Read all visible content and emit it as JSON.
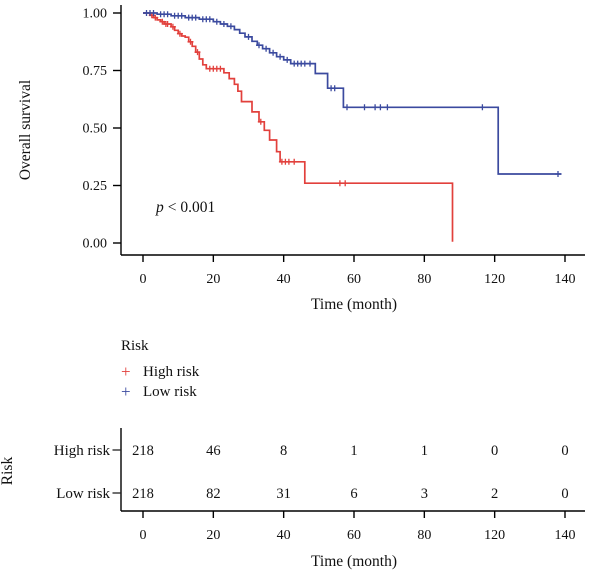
{
  "figure": {
    "background": "#ffffff",
    "p_annotation": {
      "italic_part": "p",
      "rest_part": "< 0.001"
    }
  },
  "chart_data": {
    "type": "line",
    "subtype": "kaplan-meier-step",
    "title": "",
    "xlabel": "Time (month)",
    "ylabel": "Overall survival",
    "ylim": [
      0,
      1
    ],
    "x_tick_labels": [
      "0",
      "20",
      "40",
      "60",
      "80",
      "120",
      "140"
    ],
    "y_tick_labels": [
      "0.00",
      "0.25",
      "0.50",
      "0.75",
      "1.00"
    ],
    "grid": false,
    "legend_position": "below",
    "annotation": "p < 0.001",
    "series": [
      {
        "name": "High risk",
        "color": "#e2403c",
        "steps": [
          [
            0,
            1.0
          ],
          [
            2,
            0.99
          ],
          [
            3,
            0.98
          ],
          [
            4,
            0.97
          ],
          [
            5,
            0.962
          ],
          [
            6,
            0.952
          ],
          [
            8,
            0.94
          ],
          [
            9,
            0.925
          ],
          [
            10,
            0.91
          ],
          [
            11,
            0.9
          ],
          [
            12,
            0.895
          ],
          [
            13,
            0.875
          ],
          [
            14,
            0.855
          ],
          [
            15,
            0.83
          ],
          [
            16,
            0.8
          ],
          [
            17,
            0.775
          ],
          [
            18,
            0.758
          ],
          [
            23,
            0.74
          ],
          [
            24.5,
            0.715
          ],
          [
            26,
            0.69
          ],
          [
            27,
            0.66
          ],
          [
            28,
            0.615
          ],
          [
            31,
            0.57
          ],
          [
            33,
            0.527
          ],
          [
            34.5,
            0.49
          ],
          [
            36,
            0.448
          ],
          [
            38,
            0.397
          ],
          [
            39,
            0.353
          ],
          [
            46,
            0.26
          ],
          [
            96,
            0.005
          ]
        ],
        "censors": [
          [
            2.5,
            0.99
          ],
          [
            3.5,
            0.98
          ],
          [
            5.5,
            0.962
          ],
          [
            6.5,
            0.952
          ],
          [
            7,
            0.952
          ],
          [
            8.5,
            0.94
          ],
          [
            10.5,
            0.91
          ],
          [
            13.5,
            0.875
          ],
          [
            15.5,
            0.83
          ],
          [
            19,
            0.758
          ],
          [
            20,
            0.758
          ],
          [
            21,
            0.758
          ],
          [
            22,
            0.758
          ],
          [
            33.5,
            0.527
          ],
          [
            39.5,
            0.353
          ],
          [
            40.5,
            0.353
          ],
          [
            41.5,
            0.353
          ],
          [
            43,
            0.353
          ],
          [
            56,
            0.26
          ],
          [
            57.5,
            0.26
          ]
        ]
      },
      {
        "name": "Low risk",
        "color": "#3b4a9f",
        "steps": [
          [
            0,
            1.0
          ],
          [
            4,
            0.995
          ],
          [
            8,
            0.988
          ],
          [
            12,
            0.98
          ],
          [
            16,
            0.973
          ],
          [
            20,
            0.962
          ],
          [
            22,
            0.952
          ],
          [
            24,
            0.942
          ],
          [
            26,
            0.928
          ],
          [
            27.5,
            0.912
          ],
          [
            29,
            0.896
          ],
          [
            31,
            0.877
          ],
          [
            32.5,
            0.86
          ],
          [
            34,
            0.845
          ],
          [
            36,
            0.827
          ],
          [
            38,
            0.81
          ],
          [
            40,
            0.796
          ],
          [
            42,
            0.78
          ],
          [
            49,
            0.737
          ],
          [
            52.5,
            0.673
          ],
          [
            57,
            0.59
          ],
          [
            121,
            0.3
          ],
          [
            139,
            0.3
          ]
        ],
        "censors": [
          [
            1,
            1.0
          ],
          [
            2,
            1.0
          ],
          [
            3,
            1.0
          ],
          [
            5,
            0.995
          ],
          [
            6,
            0.995
          ],
          [
            7,
            0.995
          ],
          [
            9,
            0.988
          ],
          [
            10,
            0.988
          ],
          [
            11,
            0.988
          ],
          [
            13,
            0.98
          ],
          [
            14,
            0.98
          ],
          [
            15,
            0.98
          ],
          [
            17,
            0.973
          ],
          [
            18,
            0.973
          ],
          [
            19,
            0.973
          ],
          [
            21,
            0.962
          ],
          [
            23,
            0.952
          ],
          [
            25,
            0.942
          ],
          [
            30,
            0.896
          ],
          [
            33,
            0.86
          ],
          [
            35,
            0.845
          ],
          [
            37,
            0.827
          ],
          [
            39,
            0.81
          ],
          [
            41,
            0.796
          ],
          [
            43,
            0.78
          ],
          [
            44,
            0.78
          ],
          [
            45,
            0.78
          ],
          [
            46,
            0.78
          ],
          [
            47.5,
            0.78
          ],
          [
            53.5,
            0.673
          ],
          [
            54.5,
            0.673
          ],
          [
            58,
            0.59
          ],
          [
            63,
            0.59
          ],
          [
            66,
            0.59
          ],
          [
            67.5,
            0.59
          ],
          [
            69.5,
            0.59
          ],
          [
            113,
            0.59
          ],
          [
            138,
            0.3
          ]
        ]
      }
    ]
  },
  "legend": {
    "title": "Risk",
    "items": [
      {
        "marker": "+",
        "label": "High risk",
        "color": "#e2403c"
      },
      {
        "marker": "+",
        "label": "Low risk",
        "color": "#3b4a9f"
      }
    ]
  },
  "risk_table": {
    "side_label": "Risk",
    "xlabel": "Time (month)",
    "x_tick_labels": [
      "0",
      "20",
      "40",
      "60",
      "80",
      "120",
      "140"
    ],
    "rows": [
      {
        "label": "High risk",
        "color": "#e2403c",
        "counts": [
          "218",
          "46",
          "8",
          "1",
          "1",
          "0",
          "0"
        ]
      },
      {
        "label": "Low risk",
        "color": "#3b4a9f",
        "counts": [
          "218",
          "82",
          "31",
          "6",
          "3",
          "2",
          "0"
        ]
      }
    ]
  }
}
